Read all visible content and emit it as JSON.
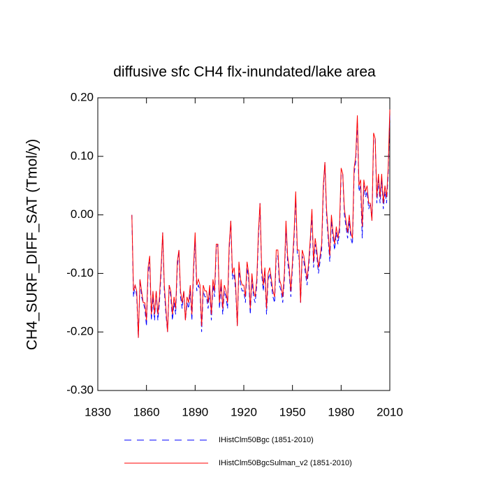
{
  "chart_data": {
    "type": "line",
    "title": "diffusive sfc CH4 flx-inundated/lake area",
    "ylabel": "CH4_SURF_DIFF_SAT  (Tmol/y)",
    "x": [
      1851,
      1852,
      1853,
      1854,
      1855,
      1856,
      1857,
      1858,
      1859,
      1860,
      1861,
      1862,
      1863,
      1864,
      1865,
      1866,
      1867,
      1868,
      1869,
      1870,
      1871,
      1872,
      1873,
      1874,
      1875,
      1876,
      1877,
      1878,
      1879,
      1880,
      1881,
      1882,
      1883,
      1884,
      1885,
      1886,
      1887,
      1888,
      1889,
      1890,
      1891,
      1892,
      1893,
      1894,
      1895,
      1896,
      1897,
      1898,
      1899,
      1900,
      1901,
      1902,
      1903,
      1904,
      1905,
      1906,
      1907,
      1908,
      1909,
      1910,
      1911,
      1912,
      1913,
      1914,
      1915,
      1916,
      1917,
      1918,
      1919,
      1920,
      1921,
      1922,
      1923,
      1924,
      1925,
      1926,
      1927,
      1928,
      1929,
      1930,
      1931,
      1932,
      1933,
      1934,
      1935,
      1936,
      1937,
      1938,
      1939,
      1940,
      1941,
      1942,
      1943,
      1944,
      1945,
      1946,
      1947,
      1948,
      1949,
      1950,
      1951,
      1952,
      1953,
      1954,
      1955,
      1956,
      1957,
      1958,
      1959,
      1960,
      1961,
      1962,
      1963,
      1964,
      1965,
      1966,
      1967,
      1968,
      1969,
      1970,
      1971,
      1972,
      1973,
      1974,
      1975,
      1976,
      1977,
      1978,
      1979,
      1980,
      1981,
      1982,
      1983,
      1984,
      1985,
      1986,
      1987,
      1988,
      1989,
      1990,
      1991,
      1992,
      1993,
      1994,
      1995,
      1996,
      1997,
      1998,
      1999,
      2000,
      2001,
      2002,
      2003,
      2004,
      2005,
      2006,
      2007,
      2008,
      2009,
      2010
    ],
    "series": [
      {
        "name": "IHistClm50Bgc (1851-2010)",
        "color": "#0000ff",
        "dash": true,
        "values": [
          0.0,
          -0.14,
          -0.12,
          -0.14,
          -0.21,
          -0.11,
          -0.14,
          -0.15,
          -0.16,
          -0.19,
          -0.1,
          -0.08,
          -0.18,
          -0.14,
          -0.18,
          -0.13,
          -0.18,
          -0.15,
          -0.1,
          -0.03,
          -0.13,
          -0.17,
          -0.2,
          -0.12,
          -0.14,
          -0.18,
          -0.15,
          -0.17,
          -0.09,
          -0.06,
          -0.14,
          -0.16,
          -0.13,
          -0.18,
          -0.15,
          -0.16,
          -0.13,
          -0.18,
          -0.1,
          -0.04,
          -0.13,
          -0.12,
          -0.13,
          -0.2,
          -0.13,
          -0.14,
          -0.14,
          -0.16,
          -0.13,
          -0.18,
          -0.12,
          -0.14,
          -0.06,
          -0.05,
          -0.16,
          -0.12,
          -0.17,
          -0.13,
          -0.14,
          -0.16,
          -0.06,
          -0.01,
          -0.11,
          -0.1,
          -0.13,
          -0.19,
          -0.09,
          -0.12,
          -0.13,
          -0.13,
          -0.15,
          -0.09,
          -0.11,
          -0.17,
          -0.11,
          -0.14,
          -0.15,
          -0.12,
          -0.04,
          0.02,
          -0.1,
          -0.13,
          -0.1,
          -0.17,
          -0.11,
          -0.1,
          -0.12,
          -0.14,
          -0.15,
          -0.07,
          -0.07,
          -0.12,
          -0.13,
          -0.15,
          -0.11,
          -0.02,
          -0.08,
          -0.1,
          -0.14,
          -0.09,
          -0.04,
          0.03,
          -0.07,
          -0.07,
          -0.15,
          -0.07,
          -0.08,
          -0.1,
          -0.12,
          -0.09,
          -0.05,
          0.0,
          -0.09,
          -0.05,
          -0.07,
          -0.1,
          -0.08,
          -0.06,
          0.04,
          0.09,
          0.0,
          -0.04,
          -0.08,
          -0.01,
          -0.04,
          -0.06,
          -0.03,
          -0.05,
          -0.03,
          0.07,
          0.07,
          0.0,
          -0.02,
          -0.04,
          -0.01,
          -0.04,
          -0.05,
          0.07,
          0.09,
          0.16,
          0.04,
          0.05,
          -0.04,
          0.05,
          0.03,
          0.04,
          0.01,
          0.02,
          -0.01,
          0.13,
          0.13,
          0.02,
          0.06,
          0.02,
          0.06,
          0.01,
          0.04,
          0.02,
          0.07,
          0.17
        ]
      },
      {
        "name": "IHistClm50BgcSulman_v2 (1851-2010)",
        "color": "#ff0000",
        "dash": false,
        "values": [
          0.0,
          -0.13,
          -0.12,
          -0.13,
          -0.21,
          -0.11,
          -0.13,
          -0.15,
          -0.15,
          -0.18,
          -0.09,
          -0.07,
          -0.17,
          -0.13,
          -0.17,
          -0.13,
          -0.17,
          -0.14,
          -0.09,
          -0.03,
          -0.12,
          -0.16,
          -0.2,
          -0.12,
          -0.13,
          -0.17,
          -0.14,
          -0.16,
          -0.08,
          -0.06,
          -0.13,
          -0.15,
          -0.13,
          -0.18,
          -0.14,
          -0.15,
          -0.12,
          -0.17,
          -0.09,
          -0.03,
          -0.12,
          -0.11,
          -0.12,
          -0.19,
          -0.12,
          -0.13,
          -0.13,
          -0.15,
          -0.12,
          -0.17,
          -0.11,
          -0.13,
          -0.05,
          -0.05,
          -0.15,
          -0.11,
          -0.16,
          -0.12,
          -0.13,
          -0.15,
          -0.05,
          -0.01,
          -0.1,
          -0.09,
          -0.12,
          -0.19,
          -0.08,
          -0.11,
          -0.12,
          -0.12,
          -0.14,
          -0.08,
          -0.1,
          -0.16,
          -0.1,
          -0.13,
          -0.14,
          -0.11,
          -0.03,
          0.02,
          -0.09,
          -0.12,
          -0.09,
          -0.16,
          -0.1,
          -0.09,
          -0.11,
          -0.13,
          -0.14,
          -0.06,
          -0.06,
          -0.11,
          -0.12,
          -0.14,
          -0.1,
          -0.01,
          -0.07,
          -0.09,
          -0.13,
          -0.08,
          -0.03,
          0.04,
          -0.06,
          -0.06,
          -0.15,
          -0.06,
          -0.07,
          -0.09,
          -0.11,
          -0.08,
          -0.04,
          0.01,
          -0.08,
          -0.04,
          -0.06,
          -0.09,
          -0.07,
          -0.05,
          0.05,
          0.09,
          0.01,
          -0.03,
          -0.07,
          0.0,
          -0.03,
          -0.05,
          -0.02,
          -0.04,
          -0.02,
          0.08,
          0.07,
          0.01,
          -0.01,
          -0.03,
          0.0,
          -0.03,
          -0.04,
          0.08,
          0.1,
          0.17,
          0.05,
          0.06,
          -0.02,
          0.06,
          0.04,
          0.05,
          0.02,
          0.02,
          -0.01,
          0.14,
          0.13,
          0.03,
          0.07,
          0.03,
          0.07,
          0.02,
          0.05,
          0.03,
          0.08,
          0.18
        ]
      }
    ],
    "xlim": [
      1830,
      2010
    ],
    "xticks": [
      1830,
      1860,
      1890,
      1920,
      1950,
      1980,
      2010
    ],
    "ylim": [
      -0.3,
      0.2
    ],
    "yticks": [
      {
        "value": -0.3,
        "label": "-0.30"
      },
      {
        "value": -0.2,
        "label": "-0.20"
      },
      {
        "value": -0.1,
        "label": "-0.10"
      },
      {
        "value": 0,
        "label": "0.00"
      },
      {
        "value": 0.1,
        "label": "0.10"
      },
      {
        "value": 0.2,
        "label": "0.20"
      }
    ]
  }
}
